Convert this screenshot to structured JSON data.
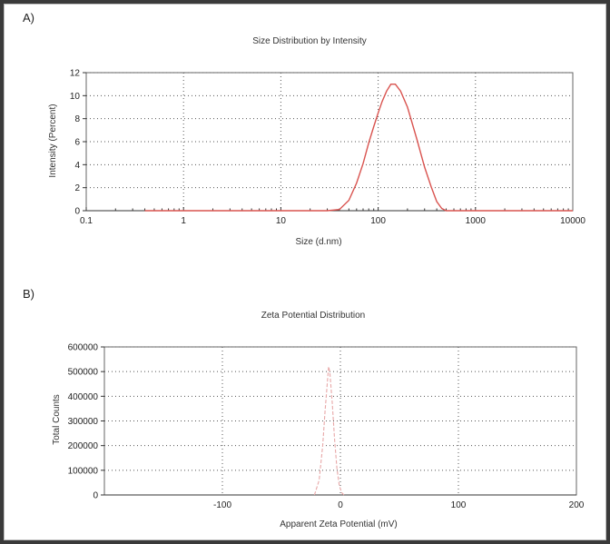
{
  "colors": {
    "series_line": "#d9534f",
    "zeta_line": "#e8a7a7"
  },
  "chart_data": [
    {
      "panel_label": "A)",
      "type": "line",
      "title": "Size Distribution by Intensity",
      "xlabel": "Size (d.nm)",
      "ylabel": "Intensity (Percent)",
      "xscale": "log",
      "xlim": [
        0.1,
        10000
      ],
      "ylim": [
        0,
        12
      ],
      "xticks": [
        0.1,
        1,
        10,
        100,
        1000,
        10000
      ],
      "xtick_labels": [
        "0.1",
        "1",
        "10",
        "100",
        "1000",
        "10000"
      ],
      "yticks": [
        0,
        2,
        4,
        6,
        8,
        10,
        12
      ],
      "ytick_labels": [
        "0",
        "2",
        "4",
        "6",
        "8",
        "10",
        "12"
      ],
      "grid": true,
      "series": [
        {
          "x": [
            0.4,
            1,
            10,
            30,
            40,
            50,
            60,
            70,
            80,
            90,
            100,
            110,
            122,
            135,
            150,
            170,
            200,
            250,
            300,
            350,
            400,
            450,
            500,
            10000
          ],
          "y": [
            0,
            0,
            0,
            0,
            0.1,
            0.9,
            2.4,
            4.1,
            5.9,
            7.3,
            8.5,
            9.5,
            10.4,
            11.0,
            11.0,
            10.4,
            9.0,
            6.2,
            3.8,
            2.1,
            0.8,
            0.2,
            0,
            0
          ]
        }
      ]
    },
    {
      "panel_label": "B)",
      "type": "line",
      "title": "Zeta Potential Distribution",
      "xlabel": "Apparent Zeta Potential (mV)",
      "ylabel": "Total Counts",
      "xlim": [
        -200,
        200
      ],
      "ylim": [
        0,
        600000
      ],
      "xticks": [
        -100,
        0,
        100,
        200
      ],
      "xtick_labels": [
        "-100",
        "0",
        "100",
        "200"
      ],
      "yticks": [
        0,
        100000,
        200000,
        300000,
        400000,
        500000,
        600000
      ],
      "ytick_labels": [
        "0",
        "100000",
        "200000",
        "300000",
        "400000",
        "500000",
        "600000"
      ],
      "grid": true,
      "series": [
        {
          "x": [
            -22,
            -18,
            -15,
            -13,
            -11,
            -10,
            -9,
            -7,
            -5,
            -3,
            -1,
            1,
            3
          ],
          "y": [
            0,
            60000,
            200000,
            340000,
            460000,
            520000,
            500000,
            380000,
            230000,
            110000,
            40000,
            10000,
            0
          ]
        }
      ]
    }
  ]
}
